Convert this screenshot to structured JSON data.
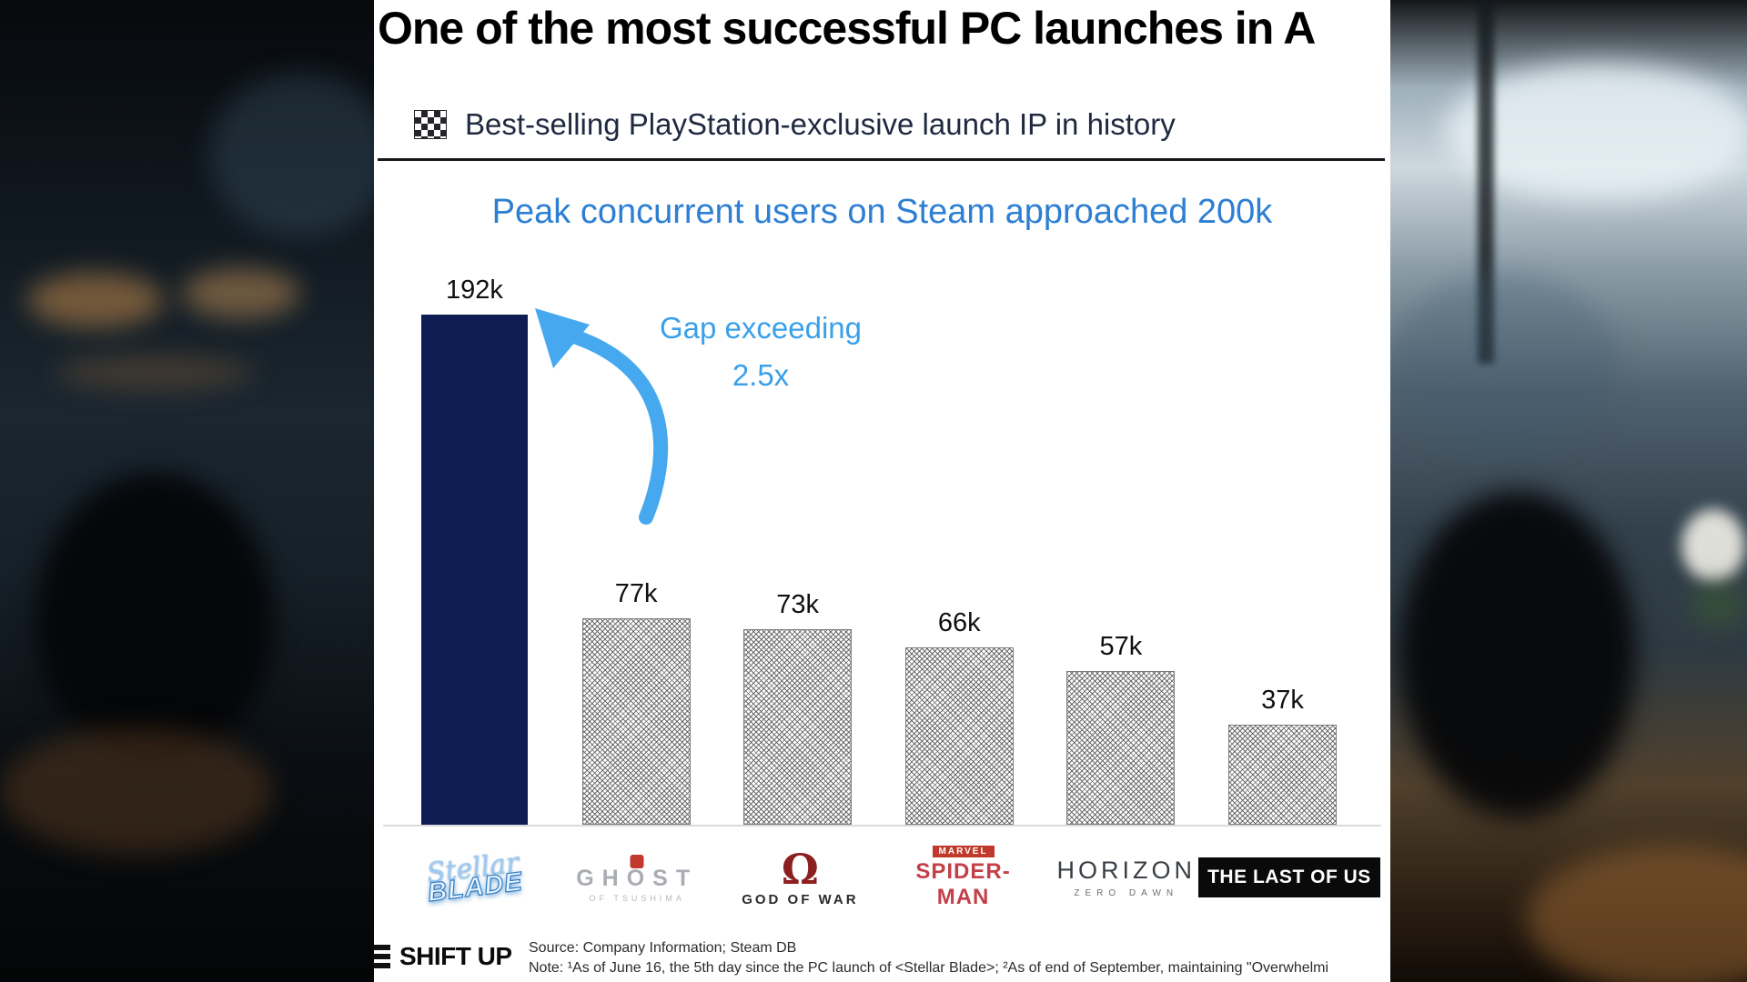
{
  "slide": {
    "title": "One of the most successful PC launches in A",
    "header": "Best-selling PlayStation-exclusive launch IP in history"
  },
  "chart_data": {
    "type": "bar",
    "title": "Peak concurrent users on Steam approached 200k",
    "categories": [
      "Stellar Blade",
      "Ghost of Tsushima",
      "God of War",
      "Marvel's Spider-Man",
      "Horizon Zero Dawn",
      "The Last of Us"
    ],
    "values": [
      192,
      77,
      73,
      66,
      57,
      37
    ],
    "labels": [
      "192k",
      "77k",
      "73k",
      "66k",
      "57k",
      "37k"
    ],
    "unit": "thousand peak concurrent Steam users",
    "ylim": [
      0,
      192
    ],
    "grid": false,
    "legend": false,
    "highlight_color": "#101c54",
    "accent_color": "#2d7fd3",
    "arrow_color": "#46a9ef",
    "annotation": {
      "line1": "Gap exceeding",
      "line2": "2.5x"
    }
  },
  "logos": {
    "stellar_blade": {
      "script": "Stellar",
      "word": "BLADE"
    },
    "ghost": {
      "word": "GHOST",
      "sub": "OF TSUSHIMA"
    },
    "god_of_war": {
      "symbol": "Ω",
      "word": "GOD OF WAR"
    },
    "spider_man": {
      "marvel": "MARVEL",
      "word": "SPIDER-MAN"
    },
    "horizon": {
      "word": "HORIZON",
      "sub": "ZERO DAWN"
    },
    "last_of_us": {
      "word": "THE LAST OF US"
    }
  },
  "footer": {
    "brand": "SHIFT UP",
    "source": "Source: Company Information; Steam DB",
    "note": "Note: ¹As of June 16, the 5th day since the PC launch of <Stellar Blade>; ²As of end of September, maintaining \"Overwhelmi"
  }
}
